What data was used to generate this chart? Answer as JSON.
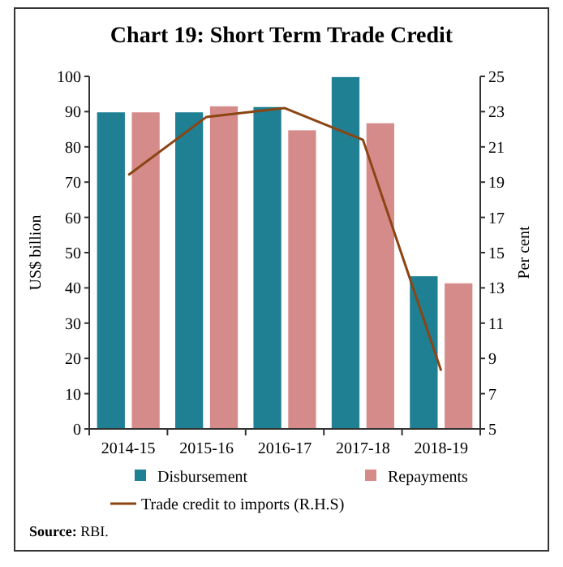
{
  "chart_data": {
    "type": "bar",
    "title": "Chart 19: Short Term Trade Credit",
    "ylabel": "US$ billion",
    "y2label": "Per cent",
    "categories": [
      "2014-15",
      "2015-16",
      "2016-17",
      "2017-18",
      "2018-19"
    ],
    "series": [
      {
        "name": "Disbursement",
        "color": "#1f7f93",
        "values": [
          89.8,
          89.8,
          91.3,
          99.8,
          43.3
        ]
      },
      {
        "name": "Repayments",
        "color": "#d68b8b",
        "values": [
          89.8,
          91.5,
          84.7,
          86.7,
          41.3
        ]
      },
      {
        "name": "Trade credit to imports (R.H.S)",
        "type": "line",
        "axis": "y2",
        "color": "#8b4513",
        "values": [
          19.4,
          22.7,
          23.2,
          21.4,
          8.3
        ]
      }
    ],
    "ylim": [
      0,
      100
    ],
    "yticks": [
      0,
      10,
      20,
      30,
      40,
      50,
      60,
      70,
      80,
      90,
      100
    ],
    "y2lim": [
      5,
      25
    ],
    "y2ticks": [
      5,
      7,
      9,
      11,
      13,
      15,
      17,
      19,
      21,
      23,
      25
    ],
    "legend": "bottom",
    "grid": false,
    "annotations": [
      "Source: RBI."
    ]
  }
}
